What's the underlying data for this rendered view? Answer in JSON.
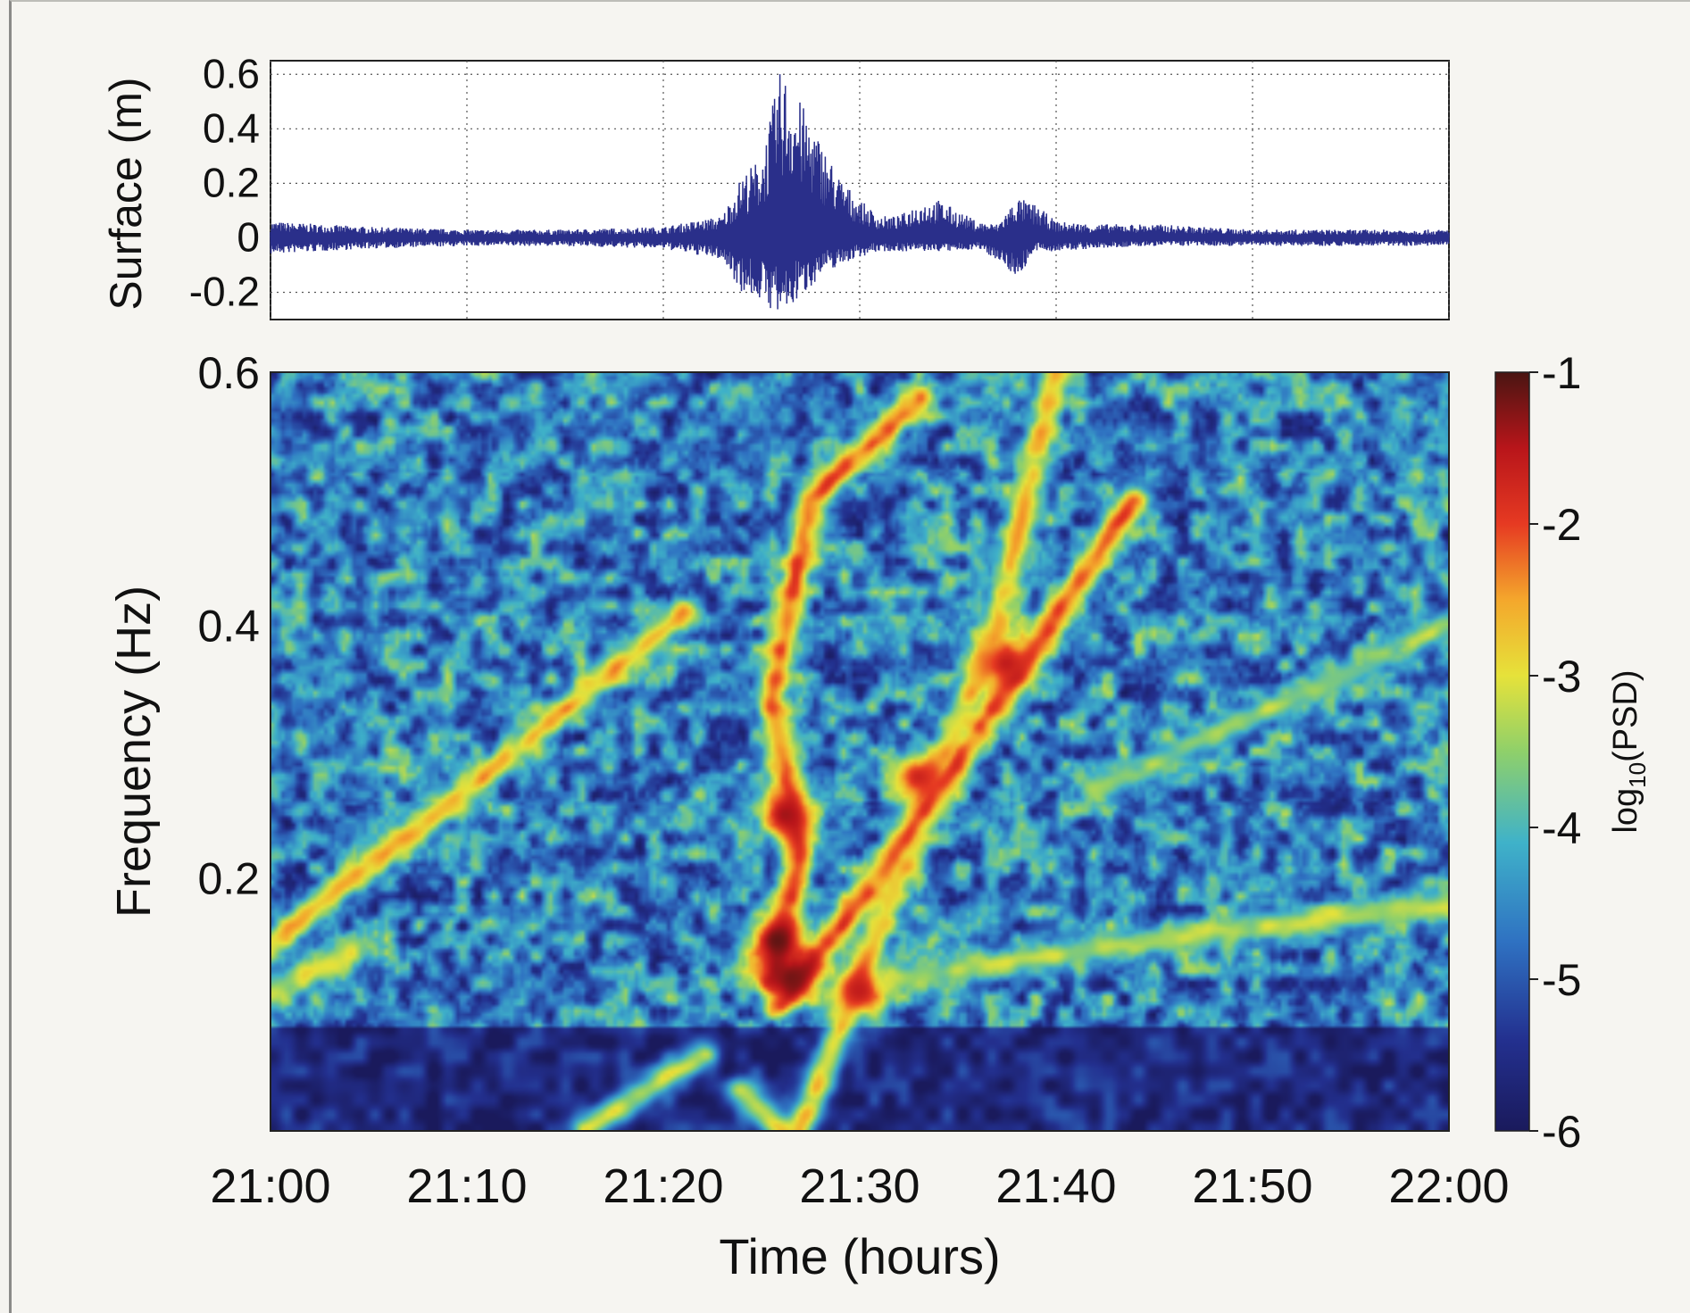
{
  "chart_data": [
    {
      "type": "line",
      "ylabel": "Surface (m)",
      "xlim": [
        "21:00",
        "22:00"
      ],
      "ylim": [
        -0.3,
        0.65
      ],
      "y_ticks": [
        "0.6",
        "0.4",
        "0.2",
        "0",
        "-0.2"
      ],
      "x_grid_minutes": [
        0,
        10,
        20,
        30,
        40,
        50,
        60
      ],
      "grid": "dotted",
      "line_color": "#2a2f8a",
      "series": [
        {
          "values_time": [
            "21:00",
            "21:05",
            "21:10",
            "21:15",
            "21:20",
            "21:23",
            "21:24",
            "21:25",
            "21:26",
            "21:27",
            "21:28",
            "21:29",
            "21:30",
            "21:31",
            "21:32",
            "21:33",
            "21:34",
            "21:35",
            "21:36",
            "21:37",
            "21:38",
            "21:39",
            "21:40",
            "21:42",
            "21:45",
            "21:50",
            "21:55",
            "22:00"
          ],
          "envelope_max": [
            0.06,
            0.04,
            0.03,
            0.03,
            0.04,
            0.08,
            0.23,
            0.3,
            0.63,
            0.5,
            0.36,
            0.22,
            0.14,
            0.08,
            0.08,
            0.13,
            0.14,
            0.1,
            0.06,
            0.05,
            0.15,
            0.12,
            0.06,
            0.05,
            0.05,
            0.03,
            0.03,
            0.03
          ],
          "envelope_min": [
            -0.06,
            -0.04,
            -0.03,
            -0.03,
            -0.04,
            -0.08,
            -0.2,
            -0.23,
            -0.3,
            -0.22,
            -0.14,
            -0.1,
            -0.07,
            -0.05,
            -0.05,
            -0.05,
            -0.05,
            -0.05,
            -0.04,
            -0.08,
            -0.15,
            -0.05,
            -0.05,
            -0.04,
            -0.03,
            -0.03,
            -0.03,
            -0.03
          ]
        }
      ]
    },
    {
      "type": "heatmap",
      "xlabel": "Time (hours)",
      "ylabel": "Frequency (Hz)",
      "x_ticks": [
        "21:00",
        "21:10",
        "21:20",
        "21:30",
        "21:40",
        "21:50",
        "22:00"
      ],
      "y_ticks": [
        "0.6",
        "0.4",
        "0.2"
      ],
      "ylim": [
        0,
        0.6
      ],
      "colorbar": {
        "label": "log",
        "label_sub": "10",
        "label_tail": "(PSD)",
        "range": [
          -6,
          -1
        ],
        "ticks": [
          "-1",
          "-2",
          "-3",
          "-4",
          "-5",
          "-6"
        ]
      },
      "background_level": -4.6,
      "low_frequency_band": {
        "freq_below": 0.08,
        "level": -5.6
      },
      "ridges": [
        {
          "points": [
            [
              0,
              0.15
            ],
            [
              10,
              0.27
            ],
            [
              21,
              0.41
            ]
          ],
          "level": -2.7
        },
        {
          "points": [
            [
              0,
              0.11
            ],
            [
              4,
              0.14
            ]
          ],
          "level": -3.2
        },
        {
          "points": [
            [
              25.5,
              0.12
            ],
            [
              27,
              0.22
            ],
            [
              25.5,
              0.34
            ],
            [
              27.5,
              0.5
            ],
            [
              33,
              0.58
            ]
          ],
          "level": -2.2
        },
        {
          "points": [
            [
              26,
              0.1
            ],
            [
              31,
              0.2
            ],
            [
              38,
              0.36
            ],
            [
              44,
              0.5
            ]
          ],
          "level": -2.1
        },
        {
          "points": [
            [
              40,
              0.6
            ],
            [
              37,
              0.4
            ],
            [
              32,
              0.2
            ],
            [
              27,
              0.0
            ]
          ],
          "level": -2.8
        },
        {
          "points": [
            [
              26,
              0.0
            ],
            [
              24,
              0.03
            ]
          ],
          "level": -3.0
        },
        {
          "points": [
            [
              16,
              0.0
            ],
            [
              22,
              0.06
            ]
          ],
          "level": -3.2
        },
        {
          "points": [
            [
              32,
              0.12
            ],
            [
              50,
              0.16
            ],
            [
              60,
              0.18
            ]
          ],
          "level": -3.3
        },
        {
          "points": [
            [
              42,
              0.27
            ],
            [
              60,
              0.4
            ]
          ],
          "level": -3.5
        }
      ],
      "hot_spots": [
        {
          "time_min": 26.5,
          "freq": 0.12,
          "level": -1.2
        },
        {
          "time_min": 25.8,
          "freq": 0.15,
          "level": -1.1
        },
        {
          "time_min": 26.2,
          "freq": 0.25,
          "level": -1.4
        },
        {
          "time_min": 30,
          "freq": 0.11,
          "level": -1.6
        },
        {
          "time_min": 33,
          "freq": 0.28,
          "level": -1.7
        },
        {
          "time_min": 37.5,
          "freq": 0.37,
          "level": -1.6
        }
      ]
    }
  ]
}
